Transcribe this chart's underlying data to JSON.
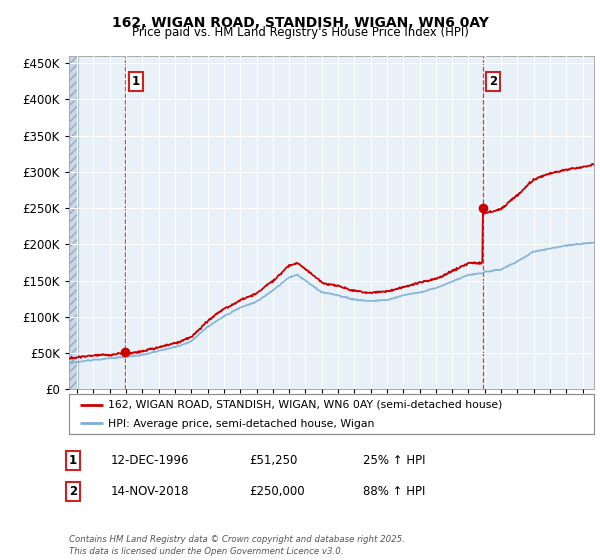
{
  "title": "162, WIGAN ROAD, STANDISH, WIGAN, WN6 0AY",
  "subtitle": "Price paid vs. HM Land Registry's House Price Index (HPI)",
  "red_label": "162, WIGAN ROAD, STANDISH, WIGAN, WN6 0AY (semi-detached house)",
  "blue_label": "HPI: Average price, semi-detached house, Wigan",
  "annotation1_date": "12-DEC-1996",
  "annotation1_price": "£51,250",
  "annotation1_hpi": "25% ↑ HPI",
  "annotation2_date": "14-NOV-2018",
  "annotation2_price": "£250,000",
  "annotation2_hpi": "88% ↑ HPI",
  "footnote": "Contains HM Land Registry data © Crown copyright and database right 2025.\nThis data is licensed under the Open Government Licence v3.0.",
  "purchase1_year": 1996.95,
  "purchase1_price": 51250,
  "purchase2_year": 2018.87,
  "purchase2_price": 250000,
  "red_color": "#cc0000",
  "blue_color": "#7bafd4",
  "dashed_color": "#cc0000",
  "bg_chart": "#e8f0f8",
  "ylim": [
    0,
    460000
  ],
  "xlim_start": 1993.5,
  "xlim_end": 2025.7
}
